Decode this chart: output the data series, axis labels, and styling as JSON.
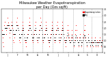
{
  "title": "Milwaukee Weather Evapotranspiration\nper Day (Ozs sq/ft)",
  "title_fontsize": 3.5,
  "bg_color": "#ffffff",
  "plot_bg_color": "#ffffff",
  "dot_color": "#ff0000",
  "black_dot_color": "#000000",
  "legend_label_red": "Evapotranspiration",
  "legend_label_black": "Avg",
  "ylim": [
    0.0,
    0.35
  ],
  "yticks": [
    0.0,
    0.05,
    0.1,
    0.15,
    0.2,
    0.25,
    0.3,
    0.35
  ],
  "ytick_labels": [
    "0",
    ".05",
    ".10",
    ".15",
    ".20",
    ".25",
    ".30",
    ".35"
  ],
  "vline_color": "#aaaaaa",
  "vline_style": "--",
  "data_red": [
    0.18,
    0.12,
    0.08,
    0.05,
    0.22,
    0.25,
    0.2,
    0.15,
    0.18,
    0.22,
    0.28,
    0.24,
    0.2,
    0.16,
    0.12,
    0.18,
    0.22,
    0.25,
    0.2,
    0.15,
    0.1,
    0.08,
    0.12,
    0.15,
    0.18,
    0.22,
    0.25,
    0.28,
    0.22,
    0.18,
    0.15,
    0.1,
    0.08,
    0.12,
    0.15,
    0.18,
    0.22,
    0.25,
    0.2,
    0.15,
    0.1,
    0.08,
    0.05,
    0.08,
    0.12,
    0.15,
    0.18,
    0.22,
    0.25,
    0.28,
    0.22,
    0.18,
    0.15,
    0.1,
    0.08,
    0.12,
    0.15,
    0.18,
    0.22,
    0.25,
    0.2,
    0.15,
    0.1,
    0.08,
    0.12,
    0.15,
    0.18,
    0.22,
    0.28,
    0.25,
    0.2,
    0.15,
    0.1,
    0.08,
    0.12,
    0.15,
    0.18,
    0.22,
    0.25,
    0.2,
    0.15,
    0.1,
    0.08,
    0.05,
    0.08,
    0.12,
    0.15,
    0.18,
    0.22,
    0.25,
    0.2,
    0.15,
    0.1,
    0.08,
    0.12,
    0.15,
    0.18,
    0.22,
    0.25,
    0.2,
    0.15,
    0.1,
    0.08,
    0.12,
    0.15,
    0.18,
    0.22,
    0.25,
    0.2,
    0.15,
    0.1,
    0.08,
    0.05,
    0.08,
    0.12,
    0.18,
    0.22,
    0.18,
    0.15,
    0.12,
    0.1,
    0.08,
    0.12,
    0.15,
    0.18,
    0.12,
    0.08,
    0.05,
    0.1,
    0.15,
    0.18,
    0.22,
    0.18,
    0.12,
    0.08,
    0.05,
    0.08,
    0.12,
    0.15,
    0.1,
    0.08,
    0.05,
    0.08,
    0.12,
    0.15,
    0.18,
    0.22,
    0.18,
    0.12,
    0.08,
    0.05,
    0.08,
    0.12,
    0.15,
    0.1,
    0.08,
    0.05,
    0.08,
    0.12,
    0.1,
    0.08,
    0.05,
    0.08,
    0.1,
    0.12,
    0.08,
    0.05,
    0.08,
    0.1,
    0.08,
    0.05,
    0.08,
    0.1,
    0.12,
    0.08,
    0.05,
    0.08,
    0.1
  ],
  "data_black": [
    0.15,
    0.15,
    0.15,
    0.15,
    0.15,
    0.2,
    0.2,
    0.2,
    0.2,
    0.2,
    0.22,
    0.22,
    0.22,
    0.18,
    0.18,
    0.18,
    0.18,
    0.22,
    0.22,
    0.18,
    0.18,
    0.15,
    0.15,
    0.15,
    0.18,
    0.18,
    0.22,
    0.22,
    0.2,
    0.18,
    0.15,
    0.12,
    0.12,
    0.12,
    0.15,
    0.15,
    0.18,
    0.2,
    0.18,
    0.15,
    0.12,
    0.1,
    0.1,
    0.1,
    0.12,
    0.12,
    0.15,
    0.18,
    0.2,
    0.22,
    0.2,
    0.18,
    0.15,
    0.12,
    0.1,
    0.12,
    0.12,
    0.15,
    0.18,
    0.2,
    0.18,
    0.15,
    0.12,
    0.1,
    0.12,
    0.12,
    0.15,
    0.18,
    0.22,
    0.2,
    0.18,
    0.15,
    0.12,
    0.1,
    0.12,
    0.12,
    0.15,
    0.18,
    0.2,
    0.18,
    0.15,
    0.12,
    0.1,
    0.08,
    0.1,
    0.1,
    0.12,
    0.15,
    0.18,
    0.2,
    0.18,
    0.15,
    0.12,
    0.1,
    0.1,
    0.12,
    0.15,
    0.18,
    0.2,
    0.18,
    0.15,
    0.12,
    0.1,
    0.1,
    0.12,
    0.15,
    0.18,
    0.2,
    0.18,
    0.15,
    0.12,
    0.1,
    0.08,
    0.1,
    0.1,
    0.14,
    0.16,
    0.14,
    0.12,
    0.1,
    0.08,
    0.08,
    0.1,
    0.12,
    0.14,
    0.1,
    0.08,
    0.06,
    0.08,
    0.1,
    0.12,
    0.14,
    0.12,
    0.1,
    0.08,
    0.06,
    0.08,
    0.1,
    0.12,
    0.1,
    0.08,
    0.06,
    0.08,
    0.1,
    0.12,
    0.14,
    0.14,
    0.12,
    0.1,
    0.08,
    0.06,
    0.08,
    0.1,
    0.12,
    0.1,
    0.08,
    0.06,
    0.08,
    0.1,
    0.08,
    0.06,
    0.08,
    0.08,
    0.1,
    0.1,
    0.08,
    0.06,
    0.08,
    0.08,
    0.06,
    0.06,
    0.08,
    0.08,
    0.1,
    0.08,
    0.06,
    0.08,
    0.08
  ],
  "vline_positions": [
    18,
    36,
    54,
    72,
    90,
    108,
    126,
    144,
    158
  ],
  "xtick_labels": [
    "J",
    "F",
    "M",
    "A",
    "M",
    "J",
    "J",
    "A",
    "S",
    "O",
    "N",
    "D"
  ],
  "n_points": 178
}
